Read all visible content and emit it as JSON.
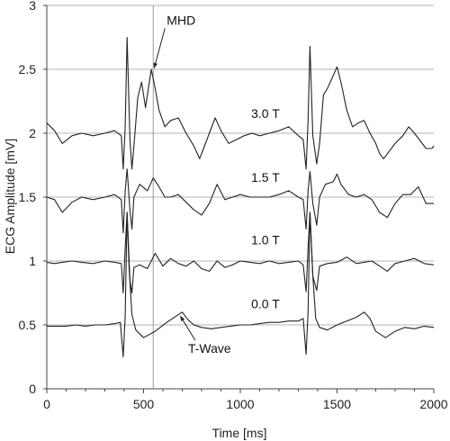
{
  "chart_data": {
    "type": "line",
    "xlabel": "Time [ms]",
    "ylabel": "ECG Amplitude [mV]",
    "xlim": [
      0,
      2000
    ],
    "ylim": [
      0,
      3
    ],
    "x_ticks": [
      0,
      500,
      1000,
      1500,
      2000
    ],
    "y_ticks": [
      0,
      0.5,
      1,
      1.5,
      2,
      2.5,
      3
    ],
    "x_tick_labels": [
      "0",
      "500",
      "1000",
      "1500",
      "2000"
    ],
    "y_tick_labels": [
      "0",
      "0.5",
      "1",
      "1.5",
      "2",
      "2.5",
      "3"
    ],
    "grid": "horizontal",
    "vertical_marker_x": 550,
    "series": [
      {
        "name": "3.0 T",
        "x": [
          0,
          40,
          80,
          130,
          180,
          240,
          300,
          350,
          385,
          395,
          405,
          415,
          430,
          440,
          450,
          470,
          490,
          510,
          540,
          560,
          580,
          610,
          640,
          680,
          720,
          760,
          790,
          810,
          840,
          870,
          900,
          940,
          980,
          1020,
          1060,
          1100,
          1150,
          1200,
          1250,
          1300,
          1325,
          1340,
          1350,
          1360,
          1375,
          1395,
          1410,
          1430,
          1450,
          1480,
          1500,
          1520,
          1550,
          1580,
          1610,
          1640,
          1670,
          1700,
          1720,
          1740,
          1770,
          1800,
          1840,
          1870,
          1900,
          1930,
          1960,
          1990,
          2000
        ],
        "y": [
          2.08,
          2.02,
          1.92,
          1.98,
          2.0,
          1.98,
          2.0,
          2.02,
          1.98,
          1.72,
          2.05,
          2.75,
          1.95,
          1.72,
          1.9,
          2.28,
          2.4,
          2.2,
          2.5,
          2.35,
          2.18,
          2.05,
          2.1,
          2.12,
          2.0,
          1.9,
          1.8,
          1.88,
          2.0,
          2.12,
          2.02,
          1.92,
          1.95,
          1.98,
          2.0,
          1.98,
          2.0,
          2.02,
          2.05,
          1.98,
          1.95,
          1.72,
          2.1,
          2.68,
          1.98,
          1.76,
          1.92,
          2.3,
          2.35,
          2.45,
          2.52,
          2.4,
          2.18,
          2.05,
          2.08,
          2.1,
          2.0,
          1.92,
          1.84,
          1.8,
          1.86,
          1.92,
          1.98,
          2.05,
          2.0,
          1.94,
          1.88,
          1.88,
          1.9
        ]
      },
      {
        "name": "1.5 T",
        "x": [
          0,
          40,
          80,
          130,
          180,
          240,
          300,
          350,
          385,
          395,
          405,
          415,
          430,
          440,
          450,
          480,
          520,
          550,
          580,
          610,
          640,
          680,
          720,
          760,
          800,
          840,
          880,
          920,
          960,
          1000,
          1050,
          1100,
          1150,
          1200,
          1250,
          1300,
          1325,
          1340,
          1350,
          1360,
          1375,
          1395,
          1410,
          1440,
          1480,
          1500,
          1520,
          1560,
          1600,
          1640,
          1680,
          1720,
          1760,
          1800,
          1840,
          1880,
          1920,
          1960,
          2000
        ],
        "y": [
          1.5,
          1.48,
          1.38,
          1.46,
          1.5,
          1.48,
          1.5,
          1.52,
          1.48,
          1.22,
          1.55,
          1.72,
          1.4,
          1.25,
          1.5,
          1.6,
          1.55,
          1.65,
          1.58,
          1.5,
          1.5,
          1.52,
          1.46,
          1.4,
          1.36,
          1.45,
          1.6,
          1.48,
          1.5,
          1.52,
          1.5,
          1.5,
          1.5,
          1.52,
          1.55,
          1.5,
          1.48,
          1.25,
          1.55,
          1.7,
          1.45,
          1.28,
          1.5,
          1.6,
          1.62,
          1.68,
          1.6,
          1.52,
          1.5,
          1.52,
          1.48,
          1.38,
          1.34,
          1.45,
          1.52,
          1.52,
          1.58,
          1.45,
          1.45
        ]
      },
      {
        "name": "1.0 T",
        "x": [
          0,
          40,
          80,
          130,
          180,
          240,
          300,
          350,
          385,
          395,
          405,
          415,
          430,
          440,
          450,
          480,
          520,
          560,
          600,
          640,
          680,
          720,
          760,
          800,
          840,
          880,
          920,
          960,
          1000,
          1050,
          1100,
          1150,
          1200,
          1250,
          1300,
          1325,
          1340,
          1350,
          1360,
          1375,
          1395,
          1410,
          1450,
          1500,
          1550,
          1600,
          1640,
          1680,
          1720,
          1760,
          1800,
          1850,
          1900,
          1950,
          2000
        ],
        "y": [
          0.99,
          0.98,
          0.99,
          1.0,
          0.99,
          0.98,
          1.0,
          0.99,
          0.98,
          0.75,
          1.1,
          1.38,
          0.85,
          0.75,
          0.95,
          0.97,
          0.94,
          1.06,
          0.96,
          1.02,
          0.98,
          0.96,
          1.0,
          0.94,
          0.92,
          1.0,
          0.95,
          0.97,
          1.0,
          0.99,
          0.98,
          1.0,
          0.98,
          0.99,
          1.0,
          0.97,
          0.76,
          1.1,
          1.38,
          0.88,
          0.77,
          0.96,
          0.98,
          0.99,
          1.03,
          0.98,
          0.99,
          1.0,
          0.96,
          0.92,
          0.98,
          1.0,
          1.02,
          0.98,
          0.97
        ]
      },
      {
        "name": "0.0 T",
        "x": [
          0,
          50,
          100,
          150,
          200,
          250,
          300,
          350,
          380,
          395,
          405,
          415,
          425,
          440,
          460,
          500,
          560,
          620,
          680,
          700,
          730,
          760,
          800,
          850,
          900,
          950,
          1000,
          1050,
          1100,
          1150,
          1200,
          1250,
          1300,
          1325,
          1340,
          1350,
          1360,
          1375,
          1390,
          1410,
          1450,
          1500,
          1550,
          1600,
          1640,
          1670,
          1700,
          1750,
          1800,
          1850,
          1900,
          1950,
          2000
        ],
        "y": [
          0.49,
          0.49,
          0.49,
          0.5,
          0.49,
          0.5,
          0.5,
          0.51,
          0.52,
          0.25,
          0.57,
          1.38,
          0.95,
          0.58,
          0.46,
          0.4,
          0.45,
          0.52,
          0.58,
          0.6,
          0.54,
          0.5,
          0.48,
          0.47,
          0.48,
          0.49,
          0.5,
          0.5,
          0.51,
          0.52,
          0.52,
          0.53,
          0.53,
          0.55,
          0.27,
          0.6,
          1.38,
          0.88,
          0.55,
          0.48,
          0.46,
          0.5,
          0.53,
          0.56,
          0.6,
          0.55,
          0.45,
          0.4,
          0.45,
          0.48,
          0.47,
          0.49,
          0.48
        ]
      }
    ],
    "annotations": [
      {
        "text": "MHD",
        "target_x": 555,
        "target_y": 2.51
      },
      {
        "text": "T-Wave",
        "target_x": 690,
        "target_y": 0.57
      }
    ]
  }
}
